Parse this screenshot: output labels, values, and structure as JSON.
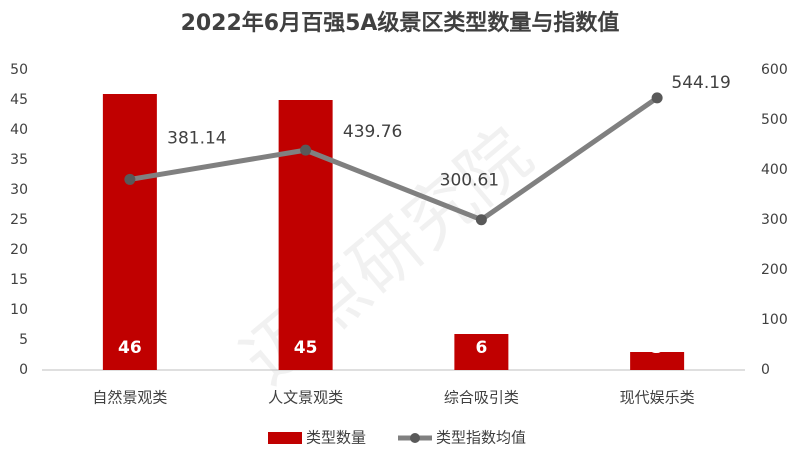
{
  "chart_data": {
    "type": "combo",
    "title": "2022年6月百强5A级景区类型数量与指数值",
    "watermark": "迈点研究院",
    "categories": [
      "自然景观类",
      "人文景观类",
      "综合吸引类",
      "现代娱乐类"
    ],
    "series": [
      {
        "name": "类型数量",
        "type": "bar",
        "color": "#c00000",
        "values": [
          46,
          45,
          6,
          3
        ]
      },
      {
        "name": "类型指数均值",
        "type": "line",
        "axis": "y2",
        "color": "#808080",
        "values": [
          381.14,
          439.76,
          300.61,
          544.19
        ]
      }
    ],
    "ylim": [
      0,
      50
    ],
    "yticks": [
      0,
      5,
      10,
      15,
      20,
      25,
      30,
      35,
      40,
      45,
      50
    ],
    "y2lim": [
      0,
      600
    ],
    "y2ticks": [
      0,
      100,
      200,
      300,
      400,
      500,
      600
    ],
    "grid": false,
    "legend": "bottom"
  }
}
